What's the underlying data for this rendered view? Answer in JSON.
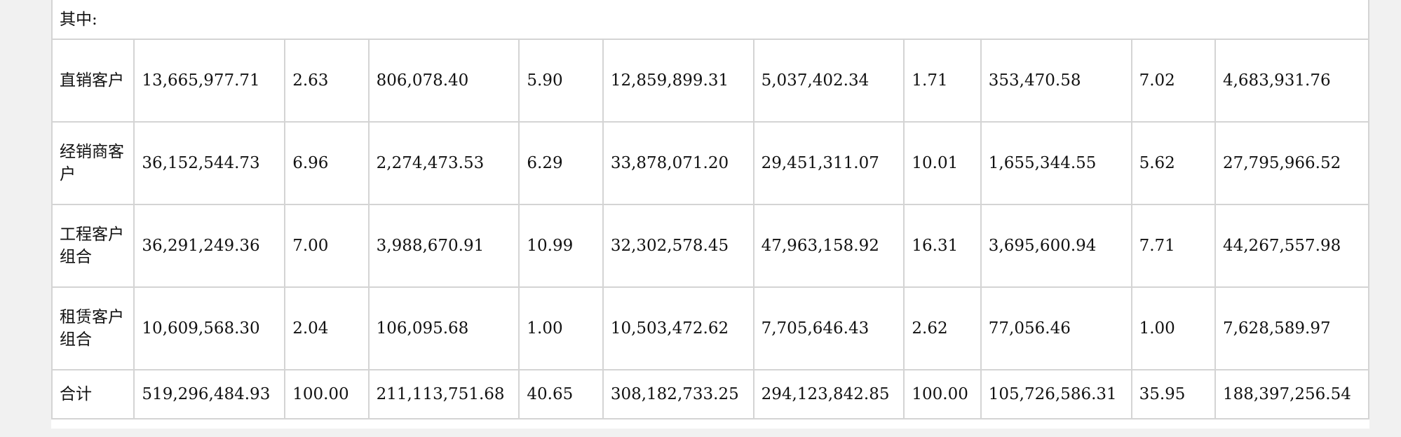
{
  "section_header": "其中:",
  "rows": [
    {
      "label": "直销客户",
      "values": [
        "13,665,977.71",
        "2.63",
        "806,078.40",
        "5.90",
        "12,859,899.31",
        "5,037,402.34",
        "1.71",
        "353,470.58",
        "7.02",
        "4,683,931.76"
      ]
    },
    {
      "label": "经销商客户",
      "values": [
        "36,152,544.73",
        "6.96",
        "2,274,473.53",
        "6.29",
        "33,878,071.20",
        "29,451,311.07",
        "10.01",
        "1,655,344.55",
        "5.62",
        "27,795,966.52"
      ]
    },
    {
      "label": "工程客户组合",
      "values": [
        "36,291,249.36",
        "7.00",
        "3,988,670.91",
        "10.99",
        "32,302,578.45",
        "47,963,158.92",
        "16.31",
        "3,695,600.94",
        "7.71",
        "44,267,557.98"
      ]
    },
    {
      "label": "租赁客户组合",
      "values": [
        "10,609,568.30",
        "2.04",
        "106,095.68",
        "1.00",
        "10,503,472.62",
        "7,705,646.43",
        "2.62",
        "77,056.46",
        "1.00",
        "7,628,589.97"
      ]
    }
  ],
  "total": {
    "label": "合计",
    "values": [
      "519,296,484.93",
      "100.00",
      "211,113,751.68",
      "40.65",
      "308,182,733.25",
      "294,123,842.85",
      "100.00",
      "105,726,586.31",
      "35.95",
      "188,397,256.54"
    ]
  }
}
